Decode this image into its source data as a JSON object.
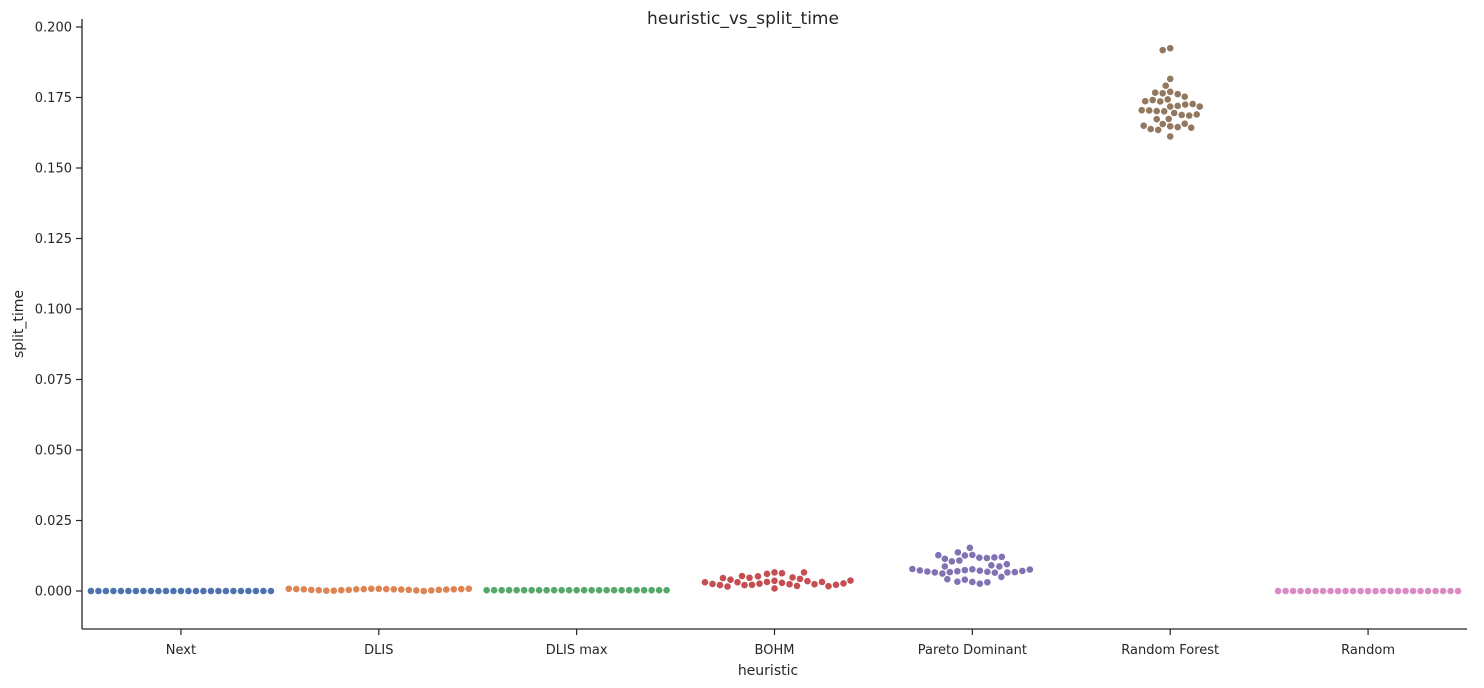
{
  "chart_data": {
    "type": "scatter",
    "subtype": "swarm",
    "title": "heuristic_vs_split_time",
    "xlabel": "heuristic",
    "ylabel": "split_time",
    "ylim": [
      -0.0135,
      0.202
    ],
    "yticks": [
      0.0,
      0.025,
      0.05,
      0.075,
      0.1,
      0.125,
      0.15,
      0.175,
      0.2
    ],
    "ytick_labels": [
      "0.000",
      "0.025",
      "0.050",
      "0.075",
      "0.100",
      "0.125",
      "0.150",
      "0.175",
      "0.200"
    ],
    "categories": [
      "Next",
      "DLIS",
      "DLIS max",
      "BOHM",
      "Pareto Dominant",
      "Random Forest",
      "Random"
    ],
    "grid": false,
    "series": [
      {
        "category": "Next",
        "color": "#4c72b0",
        "values": [
          0.0,
          0.0,
          0.0,
          0.0,
          0.0,
          0.0,
          0.0,
          0.0,
          0.0,
          0.0,
          0.0,
          0.0,
          0.0,
          0.0,
          0.0,
          0.0,
          0.0,
          0.0,
          0.0,
          0.0,
          0.0,
          0.0,
          0.0,
          0.0,
          0.0
        ]
      },
      {
        "category": "DLIS",
        "color": "#dd8452",
        "values": [
          0.0008,
          0.0008,
          0.0007,
          0.0007,
          0.0006,
          0.0006,
          0.0005,
          0.0004,
          0.0004,
          0.0003,
          0.0002,
          0.0001,
          0.0,
          0.0001,
          0.0002,
          0.0003,
          0.0004,
          0.0004,
          0.0005,
          0.0006,
          0.0006,
          0.0007,
          0.0007,
          0.0008,
          0.0008
        ]
      },
      {
        "category": "DLIS max",
        "color": "#55a868",
        "values": [
          0.0003,
          0.0003,
          0.0003,
          0.0003,
          0.0003,
          0.0003,
          0.0003,
          0.0003,
          0.0003,
          0.0003,
          0.0003,
          0.0003,
          0.0003,
          0.0003,
          0.0003,
          0.0003,
          0.0003,
          0.0003,
          0.0003,
          0.0003,
          0.0003,
          0.0003,
          0.0003,
          0.0003,
          0.0003
        ]
      },
      {
        "category": "BOHM",
        "color": "#c44e52",
        "values": [
          0.0036,
          0.0032,
          0.0029,
          0.0026,
          0.0024,
          0.0022,
          0.0048,
          0.0043,
          0.0021,
          0.0066,
          0.0035,
          0.0018,
          0.0061,
          0.0031,
          0.0009,
          0.0052,
          0.0047,
          0.0024,
          0.0063,
          0.004,
          0.0016,
          0.0066,
          0.0032,
          0.0017,
          0.0053,
          0.0046,
          0.0021,
          0.0022,
          0.0025,
          0.0027,
          0.0031,
          0.0037
        ]
      },
      {
        "category": "Pareto Dominant",
        "color": "#8172b3",
        "values": [
          0.0077,
          0.0074,
          0.0072,
          0.0128,
          0.007,
          0.0126,
          0.0068,
          0.0118,
          0.0032,
          0.0067,
          0.0108,
          0.004,
          0.0091,
          0.0065,
          0.0117,
          0.0026,
          0.0087,
          0.0137,
          0.0062,
          0.0153,
          0.0033,
          0.0105,
          0.005,
          0.0087,
          0.0119,
          0.0031,
          0.0066,
          0.0114,
          0.0042,
          0.0095,
          0.0066,
          0.0121,
          0.0067,
          0.0127,
          0.0069,
          0.0071,
          0.0073,
          0.0076,
          0.0078
        ]
      },
      {
        "category": "Random Forest",
        "color": "#937860",
        "values": [
          0.1718,
          0.1701,
          0.1648,
          0.177,
          0.1695,
          0.1656,
          0.1743,
          0.1688,
          0.1762,
          0.172,
          0.1645,
          0.1925,
          0.1736,
          0.1702,
          0.1673,
          0.1635,
          0.1612,
          0.1753,
          0.1686,
          0.1657,
          0.1725,
          0.1792,
          0.1816,
          0.1918,
          0.1741,
          0.1704,
          0.1674,
          0.1638,
          0.1765,
          0.169,
          0.1727,
          0.1643,
          0.1767,
          0.1705,
          0.1737,
          0.165,
          0.1718
        ]
      },
      {
        "category": "Random",
        "color": "#da8bc3",
        "values": [
          0.0,
          0.0,
          0.0,
          0.0,
          0.0,
          0.0,
          0.0,
          0.0,
          0.0,
          0.0,
          0.0,
          0.0,
          0.0,
          0.0,
          0.0,
          0.0,
          0.0,
          0.0,
          0.0,
          0.0,
          0.0,
          0.0,
          0.0,
          0.0,
          0.0
        ]
      }
    ]
  }
}
